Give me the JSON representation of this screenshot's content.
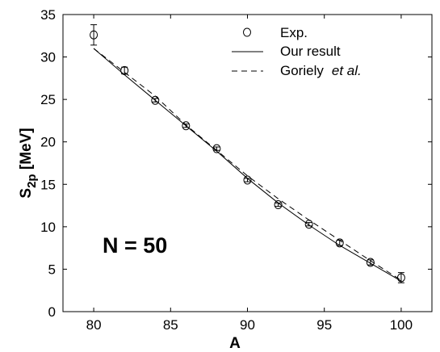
{
  "chart_data": {
    "type": "scatter",
    "xlabel": "A",
    "ylabel_main": "S",
    "ylabel_sub": "2p",
    "ylabel_unit": " [MeV]",
    "xlim": [
      78,
      102
    ],
    "ylim": [
      0,
      35
    ],
    "x_ticks": [
      80,
      85,
      90,
      95,
      100
    ],
    "y_ticks": [
      0,
      5,
      10,
      15,
      20,
      25,
      30,
      35
    ],
    "grid": false,
    "legend_position": "top-right",
    "annotation": "N = 50",
    "series": [
      {
        "name": "Exp.",
        "kind": "points-with-errorbars",
        "x": [
          80,
          82,
          84,
          86,
          88,
          90,
          92,
          94,
          96,
          98,
          100
        ],
        "y": [
          32.6,
          28.4,
          24.9,
          21.9,
          19.2,
          15.5,
          12.6,
          10.3,
          8.1,
          5.8,
          4.0
        ],
        "err": [
          1.2,
          0.4,
          0.2,
          0.2,
          0.2,
          0.2,
          0.2,
          0.2,
          0.3,
          0.3,
          0.6
        ]
      },
      {
        "name": "Our result",
        "kind": "line-solid",
        "x": [
          80,
          82,
          84,
          86,
          88,
          90,
          92,
          94,
          96,
          98,
          100
        ],
        "y": [
          31.0,
          27.9,
          24.9,
          21.9,
          18.9,
          15.7,
          12.8,
          10.2,
          7.8,
          5.7,
          3.6
        ]
      },
      {
        "name": "Goriely",
        "name_italic": "et al.",
        "kind": "line-dashed",
        "x": [
          80,
          82,
          84,
          86,
          88,
          90,
          92,
          94,
          96,
          98,
          100
        ],
        "y": [
          31.0,
          28.2,
          25.4,
          22.0,
          19.0,
          16.0,
          13.3,
          10.8,
          8.4,
          6.0,
          3.7
        ]
      }
    ]
  }
}
